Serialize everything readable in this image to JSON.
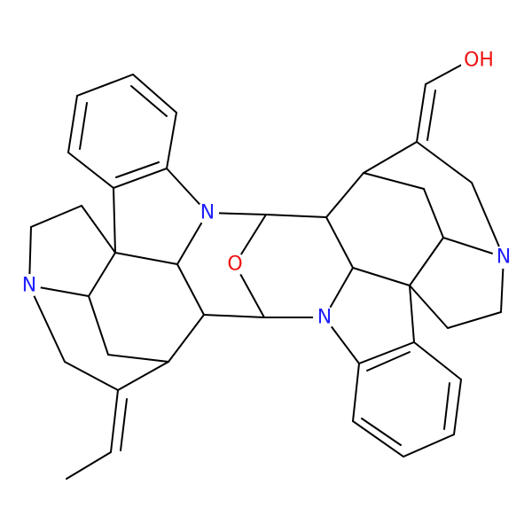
{
  "atoms": [
    {
      "label": "N"
    },
    {
      "label": "O"
    },
    {
      "label": "N"
    },
    {
      "label": "N"
    },
    {
      "label": "N"
    },
    {
      "label": "OH"
    }
  ]
}
